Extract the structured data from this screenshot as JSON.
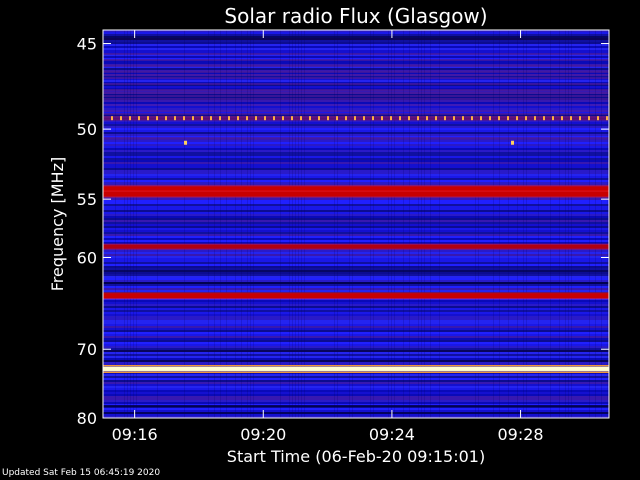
{
  "chart_data": {
    "type": "heatmap",
    "title": "Solar radio Flux (Glasgow)",
    "xlabel": "Start Time (06-Feb-20 09:15:01)",
    "ylabel": "Frequency [MHz]",
    "x_range": [
      "09:15:01",
      "09:30:45"
    ],
    "x_ticks": [
      "09:16",
      "09:20",
      "09:24",
      "09:28"
    ],
    "y_range_mhz": [
      44.3,
      80.0
    ],
    "y_ticks": [
      "45",
      "50",
      "55",
      "60",
      "70",
      "80"
    ],
    "y_scale": "reciprocal",
    "colormap": [
      "#000000",
      "#1010ff",
      "#6020a0",
      "#c80000",
      "#ff2020",
      "#ffd060",
      "#ffffd0"
    ],
    "emission_bands": [
      {
        "freq_mhz": 49.3,
        "level": "dashed-spikes"
      },
      {
        "freq_mhz": 50.9,
        "level": "point-spikes",
        "times": [
          "09:17:35",
          "09:27:45"
        ]
      },
      {
        "freq_mhz": 54.2,
        "level": "strong"
      },
      {
        "freq_mhz": 54.6,
        "level": "strong"
      },
      {
        "freq_mhz": 59.0,
        "level": "moderate"
      },
      {
        "freq_mhz": 63.8,
        "level": "strong"
      },
      {
        "freq_mhz": 72.6,
        "level": "saturated"
      }
    ]
  },
  "footer": {
    "updated": "Updated Sat Feb 15 06:45:19 2020"
  }
}
